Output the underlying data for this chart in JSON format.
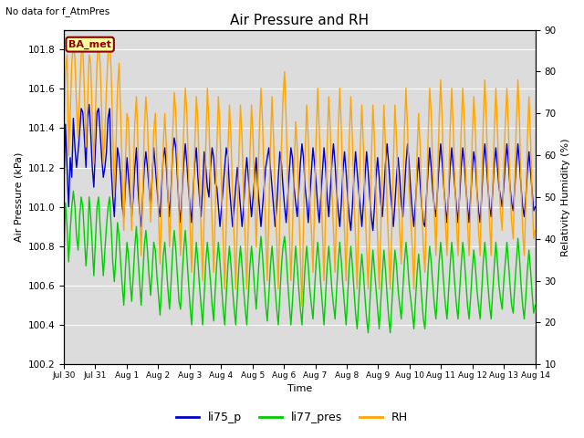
{
  "title": "Air Pressure and RH",
  "xlabel": "Time",
  "ylabel_left": "Air Pressure (kPa)",
  "ylabel_right": "Relativity Humidity (%)",
  "ylim_left": [
    100.2,
    101.9
  ],
  "ylim_right": [
    10,
    90
  ],
  "yticks_left": [
    100.2,
    100.4,
    100.6,
    100.8,
    101.0,
    101.2,
    101.4,
    101.6,
    101.8
  ],
  "yticks_right": [
    10,
    20,
    30,
    40,
    50,
    60,
    70,
    80,
    90
  ],
  "no_data_text": "No data for f_AtmPres",
  "ba_met_label": "BA_met",
  "background_color": "#dcdcdc",
  "legend_items": [
    "li75_p",
    "li77_pres",
    "RH"
  ],
  "legend_colors": [
    "#0000cc",
    "#00cc00",
    "#ffa500"
  ],
  "x_tick_labels": [
    "Jul 30",
    "Jul 31",
    "Aug 1",
    "Aug 2",
    "Aug 3",
    "Aug 4",
    "Aug 5",
    "Aug 6",
    "Aug 7",
    "Aug 8",
    "Aug 9",
    "Aug 10",
    "Aug 11",
    "Aug 12",
    "Aug 13",
    "Aug 14"
  ],
  "blue_data": [
    101.1,
    101.42,
    101.2,
    101.0,
    101.25,
    101.15,
    101.45,
    101.3,
    101.2,
    101.28,
    101.38,
    101.5,
    101.48,
    101.35,
    101.2,
    101.45,
    101.52,
    101.38,
    101.2,
    101.1,
    101.3,
    101.48,
    101.5,
    101.38,
    101.25,
    101.15,
    101.2,
    101.28,
    101.45,
    101.5,
    101.2,
    101.05,
    100.95,
    101.15,
    101.3,
    101.25,
    101.15,
    101.0,
    100.95,
    101.1,
    101.25,
    101.15,
    101.05,
    100.95,
    101.05,
    101.2,
    101.3,
    101.1,
    100.98,
    100.9,
    101.05,
    101.2,
    101.28,
    101.2,
    101.1,
    101.0,
    101.15,
    101.3,
    101.2,
    101.1,
    101.0,
    100.95,
    101.1,
    101.25,
    101.3,
    101.2,
    101.05,
    100.95,
    101.1,
    101.28,
    101.35,
    101.3,
    101.15,
    101.0,
    100.92,
    101.08,
    101.22,
    101.32,
    101.22,
    101.1,
    101.0,
    100.92,
    101.08,
    101.22,
    101.3,
    101.15,
    101.05,
    100.95,
    101.1,
    101.28,
    101.2,
    101.1,
    101.05,
    101.2,
    101.3,
    101.25,
    101.12,
    101.1,
    101.0,
    100.9,
    101.0,
    101.1,
    101.2,
    101.3,
    101.25,
    101.1,
    101.0,
    100.9,
    101.0,
    101.1,
    101.2,
    101.1,
    101.0,
    100.9,
    101.0,
    101.15,
    101.25,
    101.15,
    101.05,
    100.95,
    101.05,
    101.15,
    101.25,
    101.1,
    101.0,
    100.9,
    101.0,
    101.1,
    101.2,
    101.25,
    101.3,
    101.2,
    101.1,
    101.0,
    100.9,
    101.0,
    101.15,
    101.28,
    101.22,
    101.1,
    101.0,
    100.92,
    101.05,
    101.18,
    101.3,
    101.25,
    101.1,
    101.02,
    100.95,
    101.08,
    101.22,
    101.32,
    101.25,
    101.1,
    101.02,
    100.92,
    101.05,
    101.18,
    101.3,
    101.22,
    101.12,
    101.0,
    100.92,
    101.05,
    101.18,
    101.3,
    101.2,
    101.05,
    100.95,
    101.08,
    101.22,
    101.32,
    101.22,
    101.08,
    100.98,
    100.9,
    101.02,
    101.18,
    101.28,
    101.18,
    101.05,
    100.95,
    100.88,
    101.0,
    101.15,
    101.28,
    101.18,
    101.08,
    101.0,
    100.9,
    101.02,
    101.15,
    101.28,
    101.18,
    101.05,
    100.95,
    100.88,
    101.0,
    101.15,
    101.25,
    101.15,
    101.02,
    100.95,
    101.08,
    101.22,
    101.32,
    101.22,
    101.1,
    101.0,
    100.9,
    101.02,
    101.15,
    101.25,
    101.15,
    101.02,
    100.95,
    101.08,
    101.22,
    101.32,
    101.22,
    101.08,
    100.98,
    100.9,
    101.02,
    101.15,
    101.25,
    101.12,
    101.0,
    100.92,
    100.9,
    101.05,
    101.18,
    101.3,
    101.2,
    101.08,
    101.0,
    100.95,
    101.08,
    101.22,
    101.32,
    101.22,
    101.1,
    101.0,
    100.92,
    101.05,
    101.2,
    101.3,
    101.2,
    101.1,
    101.0,
    100.92,
    101.05,
    101.2,
    101.3,
    101.22,
    101.1,
    101.0,
    100.92,
    101.05,
    101.18,
    101.28,
    101.22,
    101.08,
    100.98,
    100.92,
    101.05,
    101.22,
    101.32,
    101.22,
    101.1,
    101.0,
    100.95,
    101.08,
    101.22,
    101.3,
    101.2,
    101.1,
    101.05,
    101.0,
    101.1,
    101.22,
    101.32,
    101.22,
    101.1,
    101.02,
    100.98,
    101.1,
    101.22,
    101.32,
    101.22,
    101.1,
    101.0,
    100.95,
    101.05,
    101.18,
    101.28,
    101.18,
    101.08,
    100.98,
    101.0
  ],
  "green_data": [
    100.75,
    101.02,
    100.9,
    100.72,
    100.88,
    101.0,
    101.08,
    101.0,
    100.85,
    100.78,
    100.95,
    101.05,
    101.0,
    100.85,
    100.7,
    100.82,
    101.05,
    100.95,
    100.8,
    100.65,
    100.82,
    101.0,
    101.05,
    100.9,
    100.78,
    100.65,
    100.78,
    100.9,
    101.0,
    101.05,
    100.9,
    100.72,
    100.62,
    100.75,
    100.92,
    100.85,
    100.72,
    100.6,
    100.5,
    100.68,
    100.82,
    100.75,
    100.62,
    100.52,
    100.65,
    100.8,
    100.9,
    100.75,
    100.62,
    100.5,
    100.65,
    100.8,
    100.88,
    100.78,
    100.65,
    100.55,
    100.68,
    100.82,
    100.78,
    100.65,
    100.55,
    100.45,
    100.6,
    100.75,
    100.82,
    100.7,
    100.58,
    100.48,
    100.62,
    100.78,
    100.88,
    100.78,
    100.65,
    100.52,
    100.48,
    100.65,
    100.78,
    100.88,
    100.75,
    100.62,
    100.5,
    100.4,
    100.55,
    100.7,
    100.82,
    100.72,
    100.6,
    100.5,
    100.4,
    100.55,
    100.72,
    100.82,
    100.72,
    100.62,
    100.5,
    100.42,
    100.58,
    100.72,
    100.82,
    100.72,
    100.6,
    100.48,
    100.4,
    100.55,
    100.7,
    100.8,
    100.7,
    100.58,
    100.48,
    100.4,
    100.55,
    100.7,
    100.8,
    100.7,
    100.58,
    100.48,
    100.4,
    100.55,
    100.7,
    100.8,
    100.7,
    100.58,
    100.48,
    100.62,
    100.75,
    100.85,
    100.75,
    100.62,
    100.5,
    100.42,
    100.55,
    100.7,
    100.8,
    100.7,
    100.58,
    100.48,
    100.4,
    100.55,
    100.7,
    100.8,
    100.85,
    100.75,
    100.62,
    100.5,
    100.4,
    100.52,
    100.67,
    100.8,
    100.7,
    100.58,
    100.48,
    100.4,
    100.55,
    100.7,
    100.8,
    100.7,
    100.58,
    100.5,
    100.43,
    100.58,
    100.72,
    100.82,
    100.72,
    100.6,
    100.5,
    100.4,
    100.55,
    100.7,
    100.8,
    100.7,
    100.58,
    100.5,
    100.43,
    100.58,
    100.72,
    100.82,
    100.72,
    100.6,
    100.5,
    100.4,
    100.55,
    100.7,
    100.8,
    100.7,
    100.58,
    100.46,
    100.38,
    100.52,
    100.66,
    100.76,
    100.66,
    100.54,
    100.43,
    100.36,
    100.5,
    100.65,
    100.78,
    100.68,
    100.58,
    100.48,
    100.38,
    100.52,
    100.66,
    100.78,
    100.68,
    100.55,
    100.44,
    100.36,
    100.5,
    100.65,
    100.78,
    100.7,
    100.58,
    100.5,
    100.43,
    100.58,
    100.72,
    100.82,
    100.72,
    100.6,
    100.53,
    100.46,
    100.38,
    100.52,
    100.66,
    100.76,
    100.66,
    100.53,
    100.43,
    100.38,
    100.53,
    100.68,
    100.8,
    100.72,
    100.6,
    100.5,
    100.43,
    100.57,
    100.72,
    100.82,
    100.72,
    100.6,
    100.5,
    100.43,
    100.57,
    100.7,
    100.82,
    100.72,
    100.6,
    100.5,
    100.43,
    100.57,
    100.7,
    100.82,
    100.74,
    100.62,
    100.5,
    100.43,
    100.54,
    100.68,
    100.78,
    100.7,
    100.58,
    100.5,
    100.43,
    100.57,
    100.72,
    100.82,
    100.72,
    100.6,
    100.5,
    100.43,
    100.57,
    100.7,
    100.82,
    100.72,
    100.6,
    100.53,
    100.48,
    100.62,
    100.72,
    100.82,
    100.72,
    100.6,
    100.5,
    100.46,
    100.6,
    100.72,
    100.84,
    100.74,
    100.6,
    100.5,
    100.43,
    100.54,
    100.68,
    100.78,
    100.68,
    100.56,
    100.46,
    100.5
  ],
  "orange_data": [
    67,
    80,
    84,
    60,
    70,
    82,
    87,
    83,
    72,
    64,
    75,
    84,
    86,
    75,
    62,
    72,
    84,
    82,
    68,
    58,
    70,
    82,
    87,
    82,
    70,
    58,
    65,
    76,
    84,
    87,
    80,
    65,
    50,
    62,
    76,
    82,
    70,
    55,
    42,
    58,
    70,
    68,
    55,
    42,
    55,
    68,
    74,
    62,
    48,
    36,
    50,
    66,
    74,
    68,
    55,
    44,
    54,
    66,
    70,
    58,
    46,
    34,
    48,
    62,
    70,
    62,
    50,
    38,
    50,
    65,
    75,
    70,
    58,
    46,
    36,
    52,
    66,
    76,
    70,
    56,
    44,
    32,
    48,
    62,
    74,
    68,
    54,
    42,
    30,
    46,
    62,
    76,
    68,
    55,
    44,
    32,
    46,
    62,
    74,
    66,
    52,
    40,
    28,
    44,
    60,
    72,
    64,
    50,
    40,
    28,
    44,
    60,
    72,
    64,
    50,
    40,
    28,
    44,
    60,
    72,
    64,
    50,
    38,
    52,
    66,
    76,
    68,
    54,
    42,
    30,
    46,
    62,
    74,
    64,
    50,
    40,
    28,
    46,
    62,
    74,
    80,
    68,
    54,
    42,
    30,
    42,
    56,
    68,
    62,
    48,
    36,
    24,
    44,
    60,
    72,
    64,
    50,
    42,
    32,
    48,
    64,
    76,
    66,
    52,
    42,
    30,
    46,
    62,
    74,
    66,
    52,
    42,
    32,
    48,
    66,
    76,
    66,
    52,
    42,
    30,
    48,
    64,
    74,
    64,
    50,
    40,
    28,
    46,
    62,
    72,
    62,
    48,
    38,
    28,
    42,
    58,
    72,
    64,
    50,
    40,
    28,
    42,
    58,
    72,
    62,
    48,
    38,
    28,
    42,
    58,
    72,
    64,
    52,
    42,
    34,
    50,
    66,
    76,
    66,
    52,
    45,
    38,
    28,
    44,
    60,
    70,
    62,
    48,
    38,
    32,
    48,
    64,
    76,
    70,
    56,
    46,
    36,
    54,
    68,
    78,
    68,
    54,
    44,
    36,
    52,
    66,
    76,
    66,
    54,
    44,
    36,
    52,
    66,
    76,
    68,
    54,
    44,
    36,
    48,
    64,
    74,
    66,
    52,
    42,
    36,
    52,
    68,
    78,
    68,
    54,
    44,
    36,
    52,
    66,
    76,
    66,
    54,
    46,
    42,
    56,
    68,
    76,
    66,
    52,
    44,
    40,
    54,
    68,
    78,
    68,
    52,
    42,
    36,
    48,
    64,
    74,
    64,
    50,
    40,
    42
  ]
}
